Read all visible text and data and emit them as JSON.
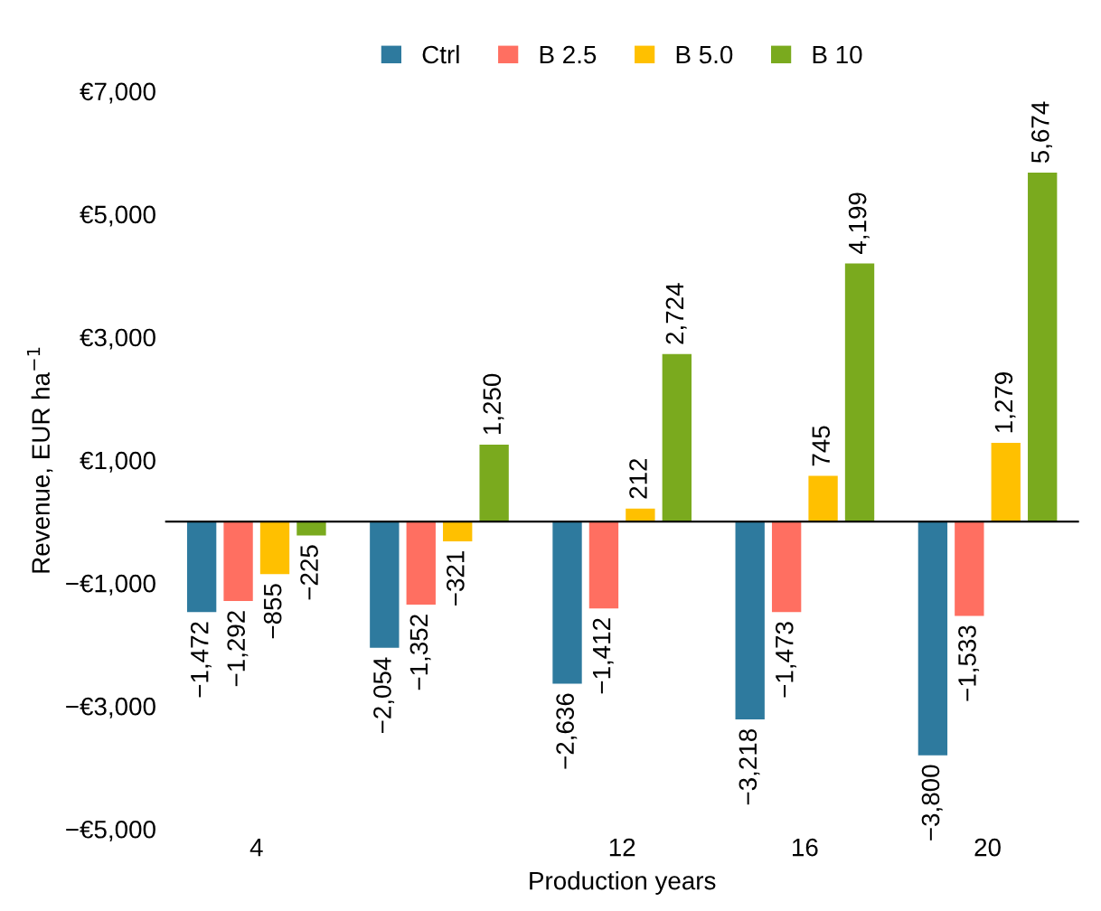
{
  "chart_data": {
    "type": "bar",
    "xlabel": "Production years",
    "ylabel": "Revenue, EUR ha$^{−1}$",
    "categories": [
      "4",
      null,
      "12",
      "16",
      "20"
    ],
    "series": [
      {
        "name": "Ctrl",
        "color": "#2e7a9e",
        "values": [
          -1472,
          -2054,
          -2636,
          -3218,
          -3800
        ],
        "value_labels": [
          "−1,472",
          "−2,054",
          "−2,636",
          "−3,218",
          "−3,800"
        ]
      },
      {
        "name": "B 2.5",
        "color": "#ff6f61",
        "values": [
          -1292,
          -1352,
          -1412,
          -1473,
          -1533
        ],
        "value_labels": [
          "−1,292",
          "−1,352",
          "−1,412",
          "−1,473",
          "−1,533"
        ]
      },
      {
        "name": "B 5.0",
        "color": "#ffc000",
        "values": [
          -855,
          -321,
          212,
          745,
          1279
        ],
        "value_labels": [
          "−855",
          "−321",
          "212",
          "745",
          "1,279"
        ]
      },
      {
        "name": "B 10",
        "color": "#7aaa1e",
        "values": [
          -225,
          1250,
          2724,
          4199,
          5674
        ],
        "value_labels": [
          "−225",
          "1,250",
          "2,724",
          "4,199",
          "5,674"
        ]
      }
    ],
    "ylim": [
      -5000,
      7000
    ],
    "yticks": [
      {
        "value": -5000,
        "label": "−€5,000"
      },
      {
        "value": -3000,
        "label": "−€3,000"
      },
      {
        "value": -1000,
        "label": "−€1,000"
      },
      {
        "value": 1000,
        "label": "€1,000"
      },
      {
        "value": 3000,
        "label": "€3,000"
      },
      {
        "value": 5000,
        "label": "€5,000"
      },
      {
        "value": 7000,
        "label": "€7,000"
      }
    ],
    "grid": false,
    "legend": "top"
  }
}
